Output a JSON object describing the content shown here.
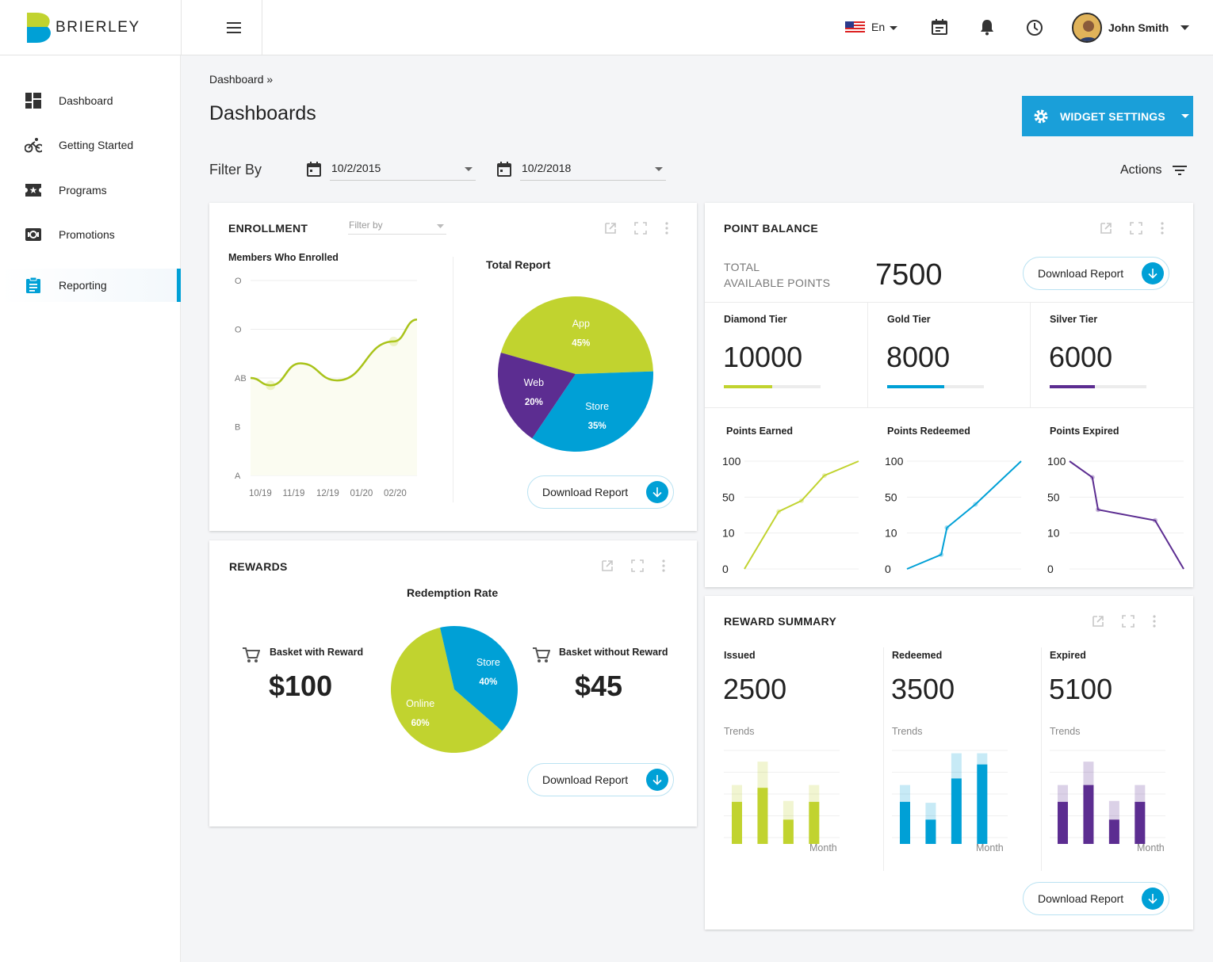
{
  "brand": {
    "name": "BRIERLEY"
  },
  "topbar": {
    "language": "En",
    "user_name": "John Smith",
    "icons": [
      "flag-us-icon",
      "calendar-icon",
      "bell-icon",
      "clock-icon"
    ]
  },
  "sidebar": {
    "items": [
      {
        "label": "Dashboard",
        "icon": "dashboard-icon"
      },
      {
        "label": "Getting Started",
        "icon": "bike-icon"
      },
      {
        "label": "Programs",
        "icon": "ticket-icon"
      },
      {
        "label": "Promotions",
        "icon": "promo-icon"
      },
      {
        "label": "Reporting",
        "icon": "clipboard-icon",
        "active": true
      }
    ]
  },
  "breadcrumb": "Dashboard »",
  "page_title": "Dashboards",
  "widget_settings_label": "WIDGET SETTINGS",
  "filter": {
    "label": "Filter By",
    "from": "10/2/2015",
    "to": "10/2/2018",
    "actions_label": "Actions"
  },
  "colors": {
    "lime": "#c1d32f",
    "blue": "#00a0d6",
    "purple": "#5c2d91",
    "accent": "#1a9fd9"
  },
  "enrollment": {
    "title": "ENROLLMENT",
    "filter_placeholder": "Filter by",
    "chart_title": "Members Who Enrolled",
    "pie_title": "Total Report",
    "download_label": "Download Report"
  },
  "point_balance": {
    "title": "POINT BALANCE",
    "total_label_1": "TOTAL",
    "total_label_2": "AVAILABLE POINTS",
    "total_value": "7500",
    "download_label": "Download Report",
    "tiers": [
      {
        "name": "Diamond Tier",
        "value": "10000",
        "fill": 0.5
      },
      {
        "name": "Gold Tier",
        "value": "8000",
        "fill": 0.59
      },
      {
        "name": "Silver Tier",
        "value": "6000",
        "fill": 0.47
      }
    ],
    "mini_charts": [
      {
        "title": "Points Earned"
      },
      {
        "title": "Points Redeemed"
      },
      {
        "title": "Points Expired"
      }
    ]
  },
  "rewards": {
    "title": "REWARDS",
    "pie_title": "Redemption Rate",
    "with_label": "Basket with Reward",
    "with_value": "$100",
    "without_label": "Basket without Reward",
    "without_value": "$45",
    "download_label": "Download Report"
  },
  "reward_summary": {
    "title": "REWARD SUMMARY",
    "trends_label": "Trends",
    "month_label": "Month",
    "download_label": "Download Report",
    "cols": [
      {
        "name": "Issued",
        "value": "2500"
      },
      {
        "name": "Redeemed",
        "value": "3500"
      },
      {
        "name": "Expired",
        "value": "5100"
      }
    ]
  },
  "chart_data": [
    {
      "id": "enrollment-line",
      "type": "line",
      "title": "Members Who Enrolled",
      "categories": [
        "10/19",
        "11/19",
        "12/19",
        "01/20",
        "02/20"
      ],
      "y_ticks": [
        "A",
        "B",
        "AB",
        "O",
        "O"
      ],
      "values": [
        2.0,
        1.85,
        2.3,
        1.95,
        2.75,
        3.2
      ],
      "x": [
        0,
        0.6,
        1.5,
        2.6,
        4.3,
        5.0
      ]
    },
    {
      "id": "total-report-pie",
      "type": "pie",
      "title": "Total Report",
      "slices": [
        {
          "label": "App",
          "value": 45,
          "text": "45%",
          "color": "#c1d32f"
        },
        {
          "label": "Store",
          "value": 35,
          "text": "35%",
          "color": "#00a0d6"
        },
        {
          "label": "Web",
          "value": 20,
          "text": "20%",
          "color": "#5c2d91"
        }
      ]
    },
    {
      "id": "redemption-pie",
      "type": "pie",
      "title": "Redemption Rate",
      "slices": [
        {
          "label": "Online",
          "value": 60,
          "text": "60%",
          "color": "#c1d32f"
        },
        {
          "label": "Store",
          "value": 40,
          "text": "40%",
          "color": "#00a0d6"
        }
      ]
    },
    {
      "id": "points-earned",
      "type": "line",
      "title": "Points Earned",
      "y_ticks": [
        "100",
        "50",
        "10",
        "0"
      ],
      "x": [
        0,
        0.3,
        0.5,
        0.7,
        1.0
      ],
      "values": [
        0,
        1.6,
        1.9,
        2.6,
        3.0
      ],
      "color": "#c1d32f"
    },
    {
      "id": "points-redeemed",
      "type": "line",
      "title": "Points Redeemed",
      "y_ticks": [
        "100",
        "50",
        "10",
        "0"
      ],
      "x": [
        0,
        0.3,
        0.35,
        0.6,
        1.0
      ],
      "values": [
        0,
        0.4,
        1.15,
        1.8,
        3.0
      ],
      "color": "#00a0d6"
    },
    {
      "id": "points-expired",
      "type": "line",
      "title": "Points Expired",
      "y_ticks": [
        "100",
        "50",
        "10",
        "0"
      ],
      "x": [
        0,
        0.2,
        0.25,
        0.75,
        1.0
      ],
      "values": [
        3.0,
        2.55,
        1.65,
        1.35,
        0
      ],
      "color": "#5c2d91"
    },
    {
      "id": "issued-trend",
      "type": "bar",
      "xlabel": "Month",
      "color": "#c1d32f",
      "values": [
        0.45,
        0.6,
        0.26,
        0.45
      ],
      "totals": [
        0.63,
        0.88,
        0.46,
        0.63
      ]
    },
    {
      "id": "redeemed-trend",
      "type": "bar",
      "xlabel": "Month",
      "color": "#00a0d6",
      "values": [
        0.45,
        0.26,
        0.7,
        0.85
      ],
      "totals": [
        0.63,
        0.44,
        0.97,
        0.97
      ]
    },
    {
      "id": "expired-trend",
      "type": "bar",
      "xlabel": "Month",
      "color": "#5c2d91",
      "values": [
        0.45,
        0.63,
        0.26,
        0.45
      ],
      "totals": [
        0.63,
        0.88,
        0.46,
        0.63
      ]
    }
  ]
}
